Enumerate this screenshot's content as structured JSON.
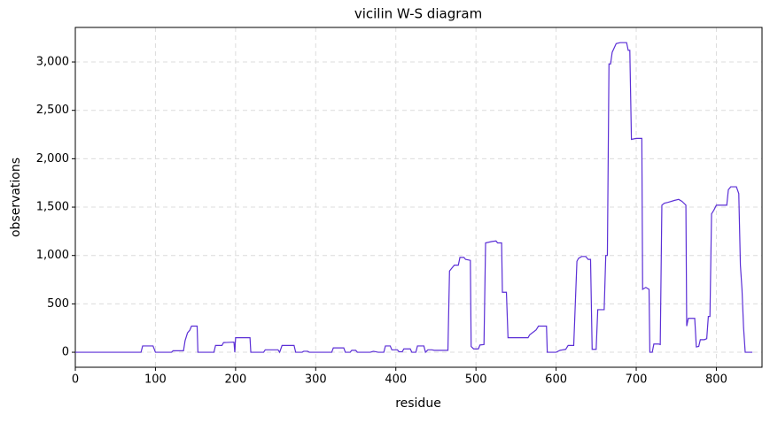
{
  "chart_data": {
    "type": "line",
    "title": "vicilin W-S diagram",
    "x_label": "residue",
    "y_label": "observations",
    "xlim": [
      0,
      857
    ],
    "ylim": [
      -155,
      3357
    ],
    "xticks": [
      0,
      100,
      200,
      300,
      400,
      500,
      600,
      700,
      800
    ],
    "yticks": [
      0,
      500,
      {
        "value": 1000,
        "label": "1,000"
      },
      {
        "value": 1500,
        "label": "1,500"
      },
      {
        "value": 2000,
        "label": "2,000"
      },
      {
        "value": 2500,
        "label": "2,500"
      },
      {
        "value": 3000,
        "label": "3,000"
      }
    ],
    "grid": true,
    "series": [
      {
        "name": "vicilin",
        "color": "#5b2fd6",
        "x": [
          0,
          82,
          84,
          97,
          100,
          120,
          122,
          135,
          137,
          140,
          143,
          145,
          152,
          153,
          173,
          175,
          183,
          185,
          198,
          199,
          200,
          218,
          219,
          235,
          237,
          253,
          255,
          258,
          273,
          275,
          283,
          285,
          290,
          292,
          320,
          322,
          335,
          337,
          343,
          345,
          350,
          352,
          368,
          372,
          378,
          385,
          387,
          393,
          395,
          402,
          404,
          408,
          410,
          418,
          420,
          425,
          427,
          435,
          437,
          440,
          445,
          448,
          465,
          467,
          470,
          473,
          478,
          480,
          485,
          487,
          493,
          494,
          497,
          503,
          505,
          510,
          512,
          520,
          525,
          527,
          532,
          533,
          538,
          540,
          565,
          567,
          575,
          578,
          588,
          589,
          600,
          605,
          612,
          615,
          622,
          626,
          628,
          632,
          637,
          640,
          643,
          645,
          650,
          652,
          660,
          662,
          664,
          666,
          668,
          670,
          675,
          680,
          688,
          690,
          692,
          694,
          700,
          707,
          708,
          712,
          716,
          717,
          720,
          722,
          728,
          730,
          732,
          735,
          740,
          748,
          753,
          757,
          762,
          763,
          765,
          773,
          775,
          778,
          780,
          785,
          788,
          790,
          792,
          794,
          797,
          800,
          813,
          815,
          818,
          825,
          828,
          830,
          832,
          834,
          836,
          845
        ],
        "values": [
          0,
          0,
          65,
          65,
          0,
          0,
          15,
          15,
          120,
          200,
          230,
          270,
          270,
          0,
          0,
          70,
          70,
          100,
          105,
          0,
          150,
          150,
          0,
          0,
          25,
          25,
          0,
          70,
          70,
          0,
          0,
          10,
          10,
          0,
          0,
          45,
          45,
          0,
          0,
          20,
          20,
          0,
          0,
          10,
          0,
          0,
          65,
          65,
          25,
          25,
          5,
          5,
          35,
          35,
          0,
          0,
          65,
          65,
          0,
          25,
          25,
          20,
          20,
          840,
          870,
          900,
          900,
          980,
          980,
          960,
          950,
          60,
          35,
          35,
          75,
          80,
          1130,
          1145,
          1150,
          1130,
          1130,
          620,
          620,
          150,
          150,
          180,
          230,
          270,
          270,
          0,
          0,
          20,
          30,
          70,
          70,
          940,
          970,
          990,
          990,
          960,
          960,
          30,
          30,
          440,
          440,
          1000,
          1000,
          2980,
          2980,
          3100,
          3190,
          3200,
          3200,
          3120,
          3120,
          2200,
          2210,
          2210,
          650,
          670,
          650,
          0,
          0,
          85,
          85,
          80,
          1520,
          1540,
          1550,
          1570,
          1580,
          1560,
          1520,
          270,
          350,
          350,
          55,
          60,
          130,
          130,
          140,
          370,
          370,
          1430,
          1470,
          1520,
          1520,
          1680,
          1710,
          1710,
          1640,
          900,
          650,
          250,
          0,
          0
        ]
      }
    ]
  }
}
